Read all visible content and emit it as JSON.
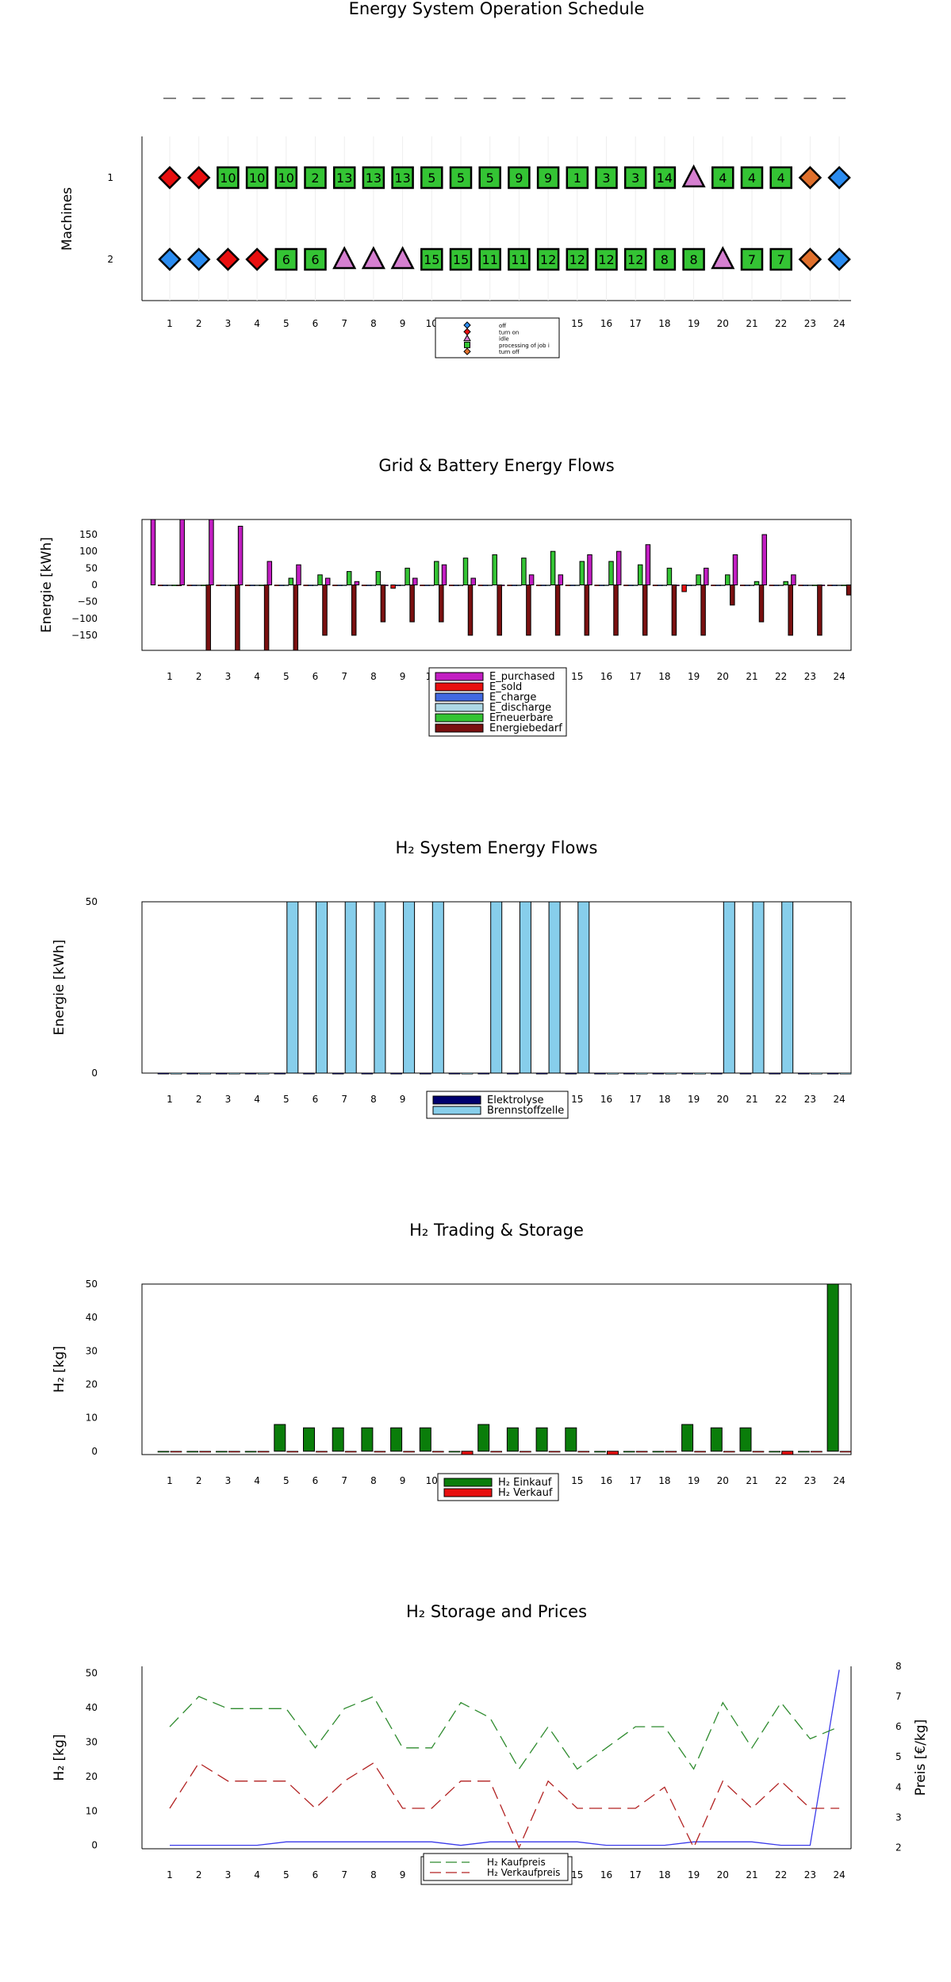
{
  "chart_data": [
    {
      "type": "schedule",
      "title": "Energy System Operation Schedule",
      "ylabel": "Machines",
      "x": [
        1,
        2,
        3,
        4,
        5,
        6,
        7,
        8,
        9,
        10,
        11,
        12,
        13,
        14,
        15,
        16,
        17,
        18,
        19,
        20,
        21,
        22,
        23,
        24
      ],
      "y_ticks": [
        "1",
        "2"
      ],
      "state_colors": {
        "off": "#2b8cf0",
        "turn_on": "#e80f0f",
        "idle": "#d57fd0",
        "processing": "#34c434",
        "turn_off": "#e0702c"
      },
      "rows": [
        {
          "machine": "1",
          "states": [
            "turn_on",
            "turn_on",
            "processing",
            "processing",
            "processing",
            "processing",
            "processing",
            "processing",
            "processing",
            "processing",
            "processing",
            "processing",
            "processing",
            "processing",
            "processing",
            "processing",
            "processing",
            "processing",
            "idle",
            "processing",
            "processing",
            "processing",
            "turn_off",
            "off"
          ],
          "jobs": [
            "",
            "",
            "10",
            "10",
            "10",
            "2",
            "13",
            "13",
            "13",
            "5",
            "5",
            "5",
            "9",
            "9",
            "1",
            "3",
            "3",
            "14",
            "",
            "4",
            "4",
            "4",
            "",
            ""
          ]
        },
        {
          "machine": "2",
          "states": [
            "off",
            "off",
            "turn_on",
            "turn_on",
            "processing",
            "processing",
            "idle",
            "idle",
            "idle",
            "processing",
            "processing",
            "processing",
            "processing",
            "processing",
            "processing",
            "processing",
            "processing",
            "processing",
            "processing",
            "idle",
            "processing",
            "processing",
            "turn_off",
            "off"
          ],
          "jobs": [
            "",
            "",
            "",
            "",
            "6",
            "6",
            "",
            "",
            "",
            "15",
            "15",
            "11",
            "11",
            "12",
            "12",
            "12",
            "12",
            "8",
            "8",
            "",
            "7",
            "7",
            "",
            ""
          ]
        }
      ],
      "legend": [
        "off",
        "turn on",
        "idle",
        "processing of job i",
        "turn off"
      ]
    },
    {
      "type": "bar",
      "title": "Grid & Battery Energy Flows",
      "ylabel": "Energie [kWh]",
      "categories": [
        1,
        2,
        3,
        4,
        5,
        6,
        7,
        8,
        9,
        10,
        11,
        12,
        13,
        14,
        15,
        16,
        17,
        18,
        19,
        20,
        21,
        22,
        23,
        24
      ],
      "ylim": [
        -195,
        195
      ],
      "yticks": [
        -150,
        -100,
        -50,
        0,
        50,
        100,
        150
      ],
      "ytick_labels": [
        "−150",
        "−100",
        "−50",
        "0",
        "50",
        "100",
        "150"
      ],
      "series": [
        {
          "name": "E_purchased",
          "color": "#c21ec2",
          "values": [
            195,
            195,
            195,
            175,
            70,
            60,
            20,
            10,
            0,
            20,
            60,
            20,
            0,
            30,
            30,
            90,
            100,
            120,
            0,
            50,
            90,
            150,
            30,
            0
          ]
        },
        {
          "name": "E_sold",
          "color": "#e80f0f",
          "values": [
            0,
            0,
            0,
            0,
            0,
            0,
            0,
            0,
            -10,
            0,
            0,
            0,
            0,
            0,
            0,
            0,
            0,
            0,
            -20,
            0,
            0,
            0,
            0,
            0
          ]
        },
        {
          "name": "E_charge",
          "color": "#4169e1",
          "values": [
            0,
            0,
            0,
            0,
            0,
            0,
            0,
            0,
            0,
            0,
            0,
            0,
            0,
            0,
            0,
            0,
            0,
            0,
            0,
            0,
            0,
            0,
            0,
            0
          ]
        },
        {
          "name": "E_discharge",
          "color": "#add8e6",
          "values": [
            0,
            0,
            0,
            0,
            0,
            0,
            0,
            0,
            0,
            0,
            0,
            0,
            0,
            0,
            0,
            0,
            0,
            0,
            0,
            0,
            0,
            0,
            0,
            0
          ]
        },
        {
          "name": "Erneuerbare",
          "color": "#34c434",
          "values": [
            0,
            0,
            0,
            0,
            20,
            30,
            40,
            40,
            50,
            70,
            80,
            90,
            80,
            100,
            70,
            70,
            60,
            50,
            30,
            30,
            10,
            10,
            0,
            0
          ]
        },
        {
          "name": "Energiebedarf",
          "color": "#7a1010",
          "values": [
            0,
            -195,
            -195,
            -195,
            -195,
            -150,
            -150,
            -110,
            -110,
            -110,
            -150,
            -150,
            -150,
            -150,
            -150,
            -150,
            -150,
            -150,
            -150,
            -60,
            -110,
            -150,
            -150,
            -30
          ]
        }
      ],
      "legend_position": "bottom"
    },
    {
      "type": "bar",
      "title": "H₂ System Energy Flows",
      "ylabel": "Energie [kWh]",
      "categories": [
        1,
        2,
        3,
        4,
        5,
        6,
        7,
        8,
        9,
        10,
        11,
        12,
        13,
        14,
        15,
        16,
        17,
        18,
        19,
        20,
        21,
        22,
        23,
        24
      ],
      "ylim": [
        0,
        50
      ],
      "yticks": [
        0,
        50
      ],
      "series": [
        {
          "name": "Elektrolyse",
          "color": "#00006e",
          "values": [
            0,
            0,
            0,
            0,
            0,
            0,
            0,
            0,
            0,
            0,
            0,
            0,
            0,
            0,
            0,
            0,
            0,
            0,
            0,
            0,
            0,
            0,
            0,
            0
          ]
        },
        {
          "name": "Brennstoffzelle",
          "color": "#87ceeb",
          "values": [
            0,
            0,
            0,
            0,
            50,
            50,
            50,
            50,
            50,
            50,
            0,
            50,
            50,
            50,
            50,
            0,
            0,
            0,
            0,
            50,
            50,
            50,
            0,
            0
          ]
        }
      ],
      "legend_position": "bottom"
    },
    {
      "type": "bar",
      "title": "H₂ Trading & Storage",
      "ylabel": "H₂ [kg]",
      "categories": [
        1,
        2,
        3,
        4,
        5,
        6,
        7,
        8,
        9,
        10,
        11,
        12,
        13,
        14,
        15,
        16,
        17,
        18,
        19,
        20,
        21,
        22,
        23,
        24
      ],
      "ylim": [
        -1,
        50
      ],
      "yticks": [
        0,
        10,
        20,
        30,
        40,
        50
      ],
      "series": [
        {
          "name": "H₂ Einkauf",
          "color": "#0a7d0a",
          "values": [
            0,
            0,
            0,
            0,
            8,
            7,
            7,
            7,
            7,
            7,
            0,
            8,
            7,
            7,
            7,
            0,
            0,
            0,
            8,
            7,
            7,
            0,
            0,
            50
          ]
        },
        {
          "name": "H₂ Verkauf",
          "color": "#e80f0f",
          "values": [
            0,
            0,
            0,
            0,
            0,
            0,
            0,
            0,
            0,
            0,
            -1,
            0,
            0,
            0,
            0,
            -1,
            0,
            0,
            0,
            0,
            0,
            -1,
            0,
            0
          ]
        }
      ],
      "legend_position": "bottom"
    },
    {
      "type": "line",
      "title": "H₂ Storage and Prices",
      "ylabel": "H₂ [kg]",
      "y2label": "Preis [€/kg]",
      "x": [
        1,
        2,
        3,
        4,
        5,
        6,
        7,
        8,
        9,
        10,
        11,
        12,
        13,
        14,
        15,
        16,
        17,
        18,
        19,
        20,
        21,
        22,
        23,
        24
      ],
      "ylim": [
        -1,
        52
      ],
      "yticks": [
        0,
        10,
        20,
        30,
        40,
        50
      ],
      "y2lim": [
        1.96,
        8.0
      ],
      "y2ticks": [
        2,
        3,
        4,
        5,
        6,
        7,
        8
      ],
      "series": [
        {
          "name": "H₂ Speicher",
          "axis": "left",
          "color": "#3b3bea",
          "style": "solid",
          "values": [
            0,
            0,
            0,
            0,
            1,
            1,
            1,
            1,
            1,
            1,
            0,
            1,
            1,
            1,
            1,
            0,
            0,
            0,
            1,
            1,
            1,
            0,
            0,
            51
          ]
        },
        {
          "name": "H₂ Kaufpreis",
          "axis": "right",
          "color": "#2e8b2e",
          "style": "dashed",
          "values": [
            6,
            7,
            6.6,
            6.6,
            6.6,
            5.3,
            6.6,
            7,
            5.3,
            5.3,
            6.8,
            6.3,
            4.6,
            6,
            4.6,
            5.3,
            6,
            6,
            4.6,
            6.8,
            5.3,
            6.8,
            5.6,
            6
          ]
        },
        {
          "name": "H₂ Verkaufpreis",
          "axis": "right",
          "color": "#b22222",
          "style": "dashed",
          "values": [
            3.3,
            4.8,
            4.2,
            4.2,
            4.2,
            3.3,
            4.2,
            4.8,
            3.3,
            3.3,
            4.2,
            4.2,
            2,
            4.2,
            3.3,
            3.3,
            3.3,
            4,
            2,
            4.2,
            3.3,
            4.2,
            3.3,
            3.3
          ]
        }
      ],
      "legend": [
        "H₂ Kaufpreis",
        "H₂ Verkaufpreis"
      ],
      "legend_position": "bottom"
    }
  ]
}
